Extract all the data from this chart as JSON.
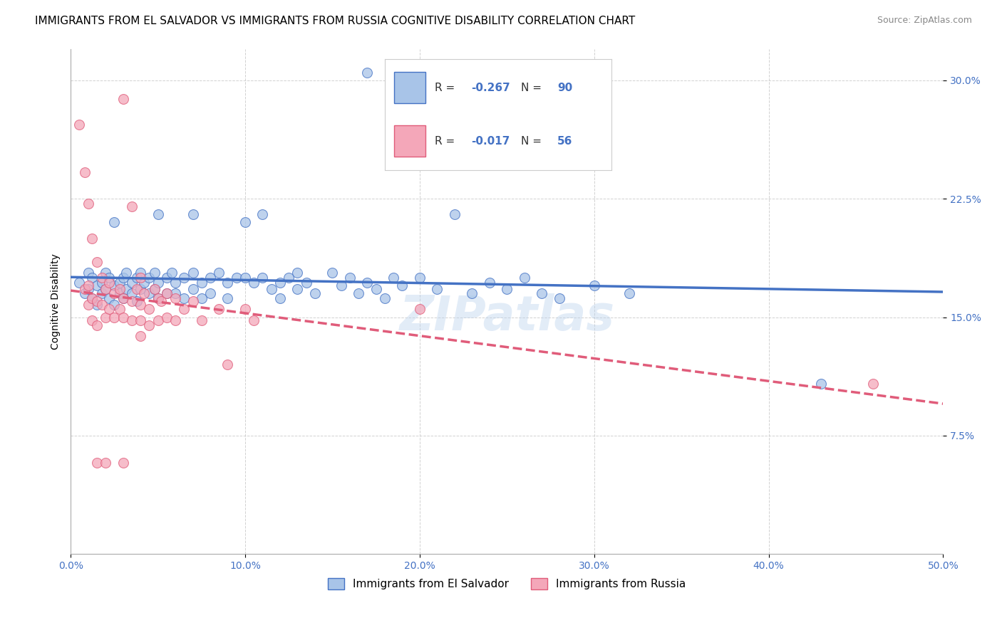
{
  "title": "IMMIGRANTS FROM EL SALVADOR VS IMMIGRANTS FROM RUSSIA COGNITIVE DISABILITY CORRELATION CHART",
  "source": "Source: ZipAtlas.com",
  "ylabel": "Cognitive Disability",
  "xlim": [
    0.0,
    0.5
  ],
  "ylim": [
    0.0,
    0.32
  ],
  "xticks": [
    0.0,
    0.1,
    0.2,
    0.3,
    0.4,
    0.5
  ],
  "yticks": [
    0.075,
    0.15,
    0.225,
    0.3
  ],
  "ytick_labels": [
    "7.5%",
    "15.0%",
    "22.5%",
    "30.0%"
  ],
  "xtick_labels": [
    "0.0%",
    "10.0%",
    "20.0%",
    "30.0%",
    "40.0%",
    "50.0%"
  ],
  "color_blue": "#a8c4e8",
  "color_pink": "#f4a7b9",
  "line_blue": "#4472c4",
  "line_pink": "#e05c7a",
  "R_blue": -0.267,
  "N_blue": 90,
  "R_pink": -0.017,
  "N_pink": 56,
  "legend_label_blue": "Immigrants from El Salvador",
  "legend_label_pink": "Immigrants from Russia",
  "watermark": "ZIPatlas",
  "blue_scatter": [
    [
      0.005,
      0.172
    ],
    [
      0.008,
      0.165
    ],
    [
      0.01,
      0.178
    ],
    [
      0.01,
      0.168
    ],
    [
      0.012,
      0.175
    ],
    [
      0.012,
      0.162
    ],
    [
      0.015,
      0.17
    ],
    [
      0.015,
      0.158
    ],
    [
      0.018,
      0.172
    ],
    [
      0.018,
      0.165
    ],
    [
      0.02,
      0.178
    ],
    [
      0.02,
      0.168
    ],
    [
      0.022,
      0.175
    ],
    [
      0.022,
      0.162
    ],
    [
      0.025,
      0.21
    ],
    [
      0.025,
      0.17
    ],
    [
      0.025,
      0.158
    ],
    [
      0.028,
      0.172
    ],
    [
      0.028,
      0.165
    ],
    [
      0.03,
      0.175
    ],
    [
      0.03,
      0.162
    ],
    [
      0.032,
      0.178
    ],
    [
      0.032,
      0.168
    ],
    [
      0.035,
      0.172
    ],
    [
      0.035,
      0.165
    ],
    [
      0.038,
      0.175
    ],
    [
      0.038,
      0.16
    ],
    [
      0.04,
      0.178
    ],
    [
      0.04,
      0.168
    ],
    [
      0.042,
      0.172
    ],
    [
      0.045,
      0.175
    ],
    [
      0.045,
      0.165
    ],
    [
      0.048,
      0.178
    ],
    [
      0.048,
      0.168
    ],
    [
      0.05,
      0.215
    ],
    [
      0.05,
      0.172
    ],
    [
      0.05,
      0.162
    ],
    [
      0.055,
      0.175
    ],
    [
      0.055,
      0.165
    ],
    [
      0.058,
      0.178
    ],
    [
      0.06,
      0.172
    ],
    [
      0.06,
      0.165
    ],
    [
      0.065,
      0.175
    ],
    [
      0.065,
      0.162
    ],
    [
      0.07,
      0.215
    ],
    [
      0.07,
      0.178
    ],
    [
      0.07,
      0.168
    ],
    [
      0.075,
      0.172
    ],
    [
      0.075,
      0.162
    ],
    [
      0.08,
      0.175
    ],
    [
      0.08,
      0.165
    ],
    [
      0.085,
      0.178
    ],
    [
      0.09,
      0.172
    ],
    [
      0.09,
      0.162
    ],
    [
      0.095,
      0.175
    ],
    [
      0.1,
      0.21
    ],
    [
      0.1,
      0.175
    ],
    [
      0.105,
      0.172
    ],
    [
      0.11,
      0.215
    ],
    [
      0.11,
      0.175
    ],
    [
      0.115,
      0.168
    ],
    [
      0.12,
      0.172
    ],
    [
      0.12,
      0.162
    ],
    [
      0.125,
      0.175
    ],
    [
      0.13,
      0.178
    ],
    [
      0.13,
      0.168
    ],
    [
      0.135,
      0.172
    ],
    [
      0.14,
      0.165
    ],
    [
      0.15,
      0.178
    ],
    [
      0.155,
      0.17
    ],
    [
      0.16,
      0.175
    ],
    [
      0.165,
      0.165
    ],
    [
      0.17,
      0.172
    ],
    [
      0.175,
      0.168
    ],
    [
      0.18,
      0.162
    ],
    [
      0.185,
      0.175
    ],
    [
      0.19,
      0.17
    ],
    [
      0.2,
      0.175
    ],
    [
      0.21,
      0.168
    ],
    [
      0.22,
      0.215
    ],
    [
      0.23,
      0.165
    ],
    [
      0.24,
      0.172
    ],
    [
      0.25,
      0.168
    ],
    [
      0.26,
      0.175
    ],
    [
      0.27,
      0.165
    ],
    [
      0.28,
      0.162
    ],
    [
      0.3,
      0.17
    ],
    [
      0.32,
      0.165
    ],
    [
      0.17,
      0.305
    ],
    [
      0.43,
      0.108
    ]
  ],
  "pink_scatter": [
    [
      0.005,
      0.272
    ],
    [
      0.008,
      0.242
    ],
    [
      0.008,
      0.168
    ],
    [
      0.01,
      0.222
    ],
    [
      0.01,
      0.17
    ],
    [
      0.01,
      0.158
    ],
    [
      0.012,
      0.2
    ],
    [
      0.012,
      0.162
    ],
    [
      0.012,
      0.148
    ],
    [
      0.015,
      0.185
    ],
    [
      0.015,
      0.16
    ],
    [
      0.015,
      0.145
    ],
    [
      0.015,
      0.058
    ],
    [
      0.018,
      0.175
    ],
    [
      0.018,
      0.158
    ],
    [
      0.02,
      0.168
    ],
    [
      0.02,
      0.15
    ],
    [
      0.02,
      0.058
    ],
    [
      0.022,
      0.172
    ],
    [
      0.022,
      0.155
    ],
    [
      0.025,
      0.165
    ],
    [
      0.025,
      0.15
    ],
    [
      0.028,
      0.168
    ],
    [
      0.028,
      0.155
    ],
    [
      0.03,
      0.288
    ],
    [
      0.03,
      0.162
    ],
    [
      0.03,
      0.15
    ],
    [
      0.03,
      0.058
    ],
    [
      0.035,
      0.22
    ],
    [
      0.035,
      0.16
    ],
    [
      0.035,
      0.148
    ],
    [
      0.038,
      0.168
    ],
    [
      0.04,
      0.175
    ],
    [
      0.04,
      0.158
    ],
    [
      0.04,
      0.148
    ],
    [
      0.04,
      0.138
    ],
    [
      0.042,
      0.165
    ],
    [
      0.045,
      0.155
    ],
    [
      0.045,
      0.145
    ],
    [
      0.048,
      0.168
    ],
    [
      0.05,
      0.162
    ],
    [
      0.05,
      0.148
    ],
    [
      0.052,
      0.16
    ],
    [
      0.055,
      0.165
    ],
    [
      0.055,
      0.15
    ],
    [
      0.06,
      0.162
    ],
    [
      0.06,
      0.148
    ],
    [
      0.065,
      0.155
    ],
    [
      0.07,
      0.16
    ],
    [
      0.075,
      0.148
    ],
    [
      0.085,
      0.155
    ],
    [
      0.09,
      0.12
    ],
    [
      0.1,
      0.155
    ],
    [
      0.105,
      0.148
    ],
    [
      0.2,
      0.155
    ],
    [
      0.46,
      0.108
    ]
  ],
  "title_fontsize": 11,
  "axis_label_fontsize": 10,
  "tick_fontsize": 10
}
